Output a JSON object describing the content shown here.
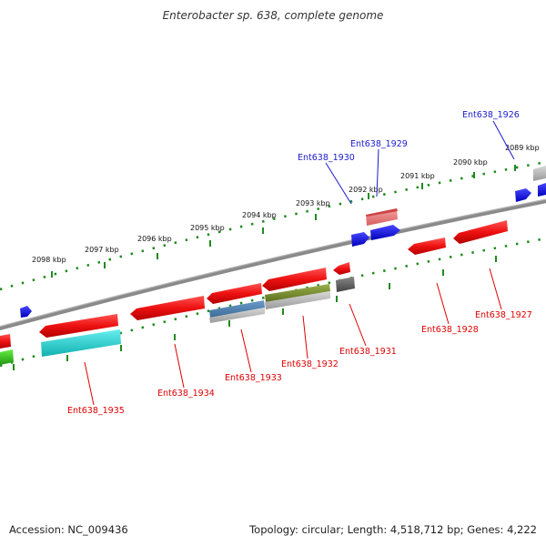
{
  "title": "Enterobacter sp. 638, complete genome",
  "footer": {
    "accession": "Accession: NC_009436",
    "summary": "Topology: circular; Length: 4,518,712 bp; Genes: 4,222"
  },
  "colors": {
    "backbone": "#8a8a8a",
    "ruler": "#1f8a1f",
    "red": "#ee1111",
    "blue": "#1a1aee",
    "cyan": "#22cccc",
    "label_red": "#dd0000",
    "label_blue": "#1a1acc"
  },
  "kbp_labels": [
    "2089 kbp",
    "2090 kbp",
    "2091 kbp",
    "2092 kbp",
    "2093 kbp",
    "2094 kbp",
    "2095 kbp",
    "2096 kbp",
    "2097 kbp",
    "2098 kbp"
  ],
  "gene_labels": [
    "Ent638_1926",
    "Ent638_1929",
    "Ent638_1930",
    "Ent638_1928",
    "Ent638_1927",
    "Ent638_1931",
    "Ent638_1932",
    "Ent638_1933",
    "Ent638_1934",
    "Ent638_1935"
  ]
}
